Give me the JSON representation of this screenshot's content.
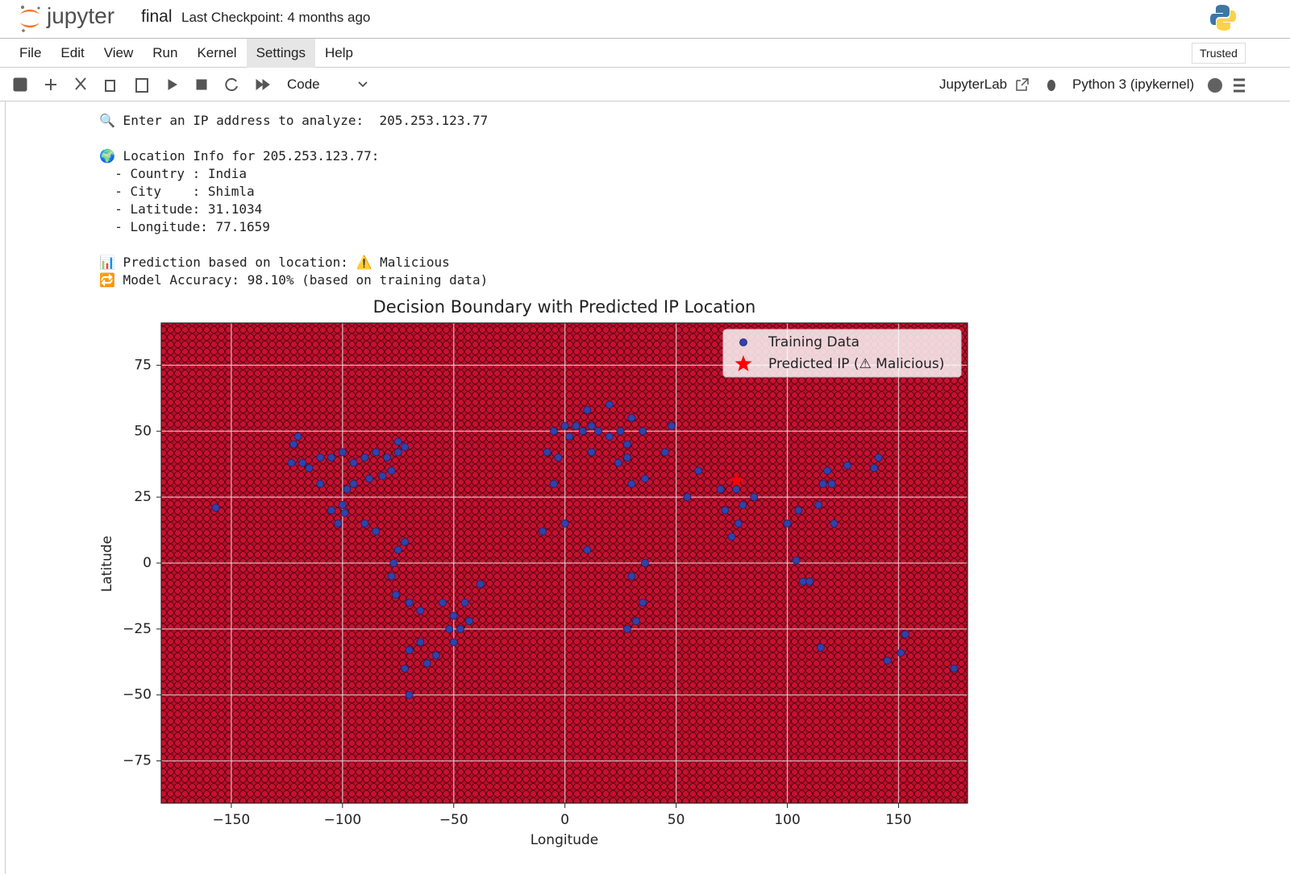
{
  "header": {
    "logo": "jupyter",
    "notebook": "final",
    "checkpoint": "Last Checkpoint: 4 months ago"
  },
  "menu": {
    "items": [
      "File",
      "Edit",
      "View",
      "Run",
      "Kernel",
      "Settings",
      "Help"
    ],
    "trusted": "Trusted"
  },
  "toolbar": {
    "cell_type": "Code",
    "jupyterlab": "JupyterLab",
    "kernel": "Python 3 (ipykernel)"
  },
  "output": {
    "groups": [
      [
        "🔍 Enter an IP address to analyze:  205.253.123.77"
      ],
      [
        "🌍 Location Info for 205.253.123.77:",
        "  - Country : India",
        "  - City    : Shimla",
        "  - Latitude: 31.1034",
        "  - Longitude: 77.1659"
      ],
      [
        "📊 Prediction based on location: ⚠️ Malicious",
        "🔁 Model Accuracy: 98.10% (based on training data)"
      ]
    ]
  },
  "chart_data": {
    "type": "scatter",
    "title": "Decision Boundary with Predicted IP Location",
    "x_label": "Longitude",
    "y_label": "Latitude",
    "xlim": [
      -181.5,
      181
    ],
    "ylim": [
      -91,
      91
    ],
    "xticks": [
      {
        "value": -150,
        "label": "−150"
      },
      {
        "value": -100,
        "label": "−100"
      },
      {
        "value": -50,
        "label": "−50"
      },
      0,
      50,
      100,
      150
    ],
    "yticks": [
      {
        "value": -75,
        "label": "−75"
      },
      {
        "value": -50,
        "label": "−50"
      },
      {
        "value": -25,
        "label": "−25"
      },
      0,
      25,
      50,
      75
    ],
    "grid": true,
    "legend": "upper right",
    "background_color": "#b5112c",
    "series": [
      {
        "name": "Training Data",
        "color": "#2f43a8",
        "marker": "circle",
        "x": [
          -120,
          -118,
          -115,
          -110,
          -105,
          -100,
          -95,
          -90,
          -85,
          -80,
          -75,
          -72,
          -78,
          -82,
          -88,
          -95,
          -98,
          -100,
          -105,
          -99,
          -90,
          -85,
          -110,
          -122,
          -123,
          -75,
          -102,
          -75,
          -72,
          -77,
          -78,
          -76,
          -70,
          -65,
          -55,
          -50,
          -47,
          -43,
          -38,
          -50,
          -58,
          -62,
          -70,
          -72,
          -70,
          -45,
          -52,
          -65,
          -5,
          0,
          2,
          5,
          8,
          12,
          15,
          20,
          25,
          28,
          30,
          35,
          -3,
          -8,
          12,
          24,
          28,
          20,
          10,
          45,
          48,
          36,
          -5,
          0,
          -10,
          10,
          30,
          35,
          28,
          32,
          36,
          30,
          55,
          60,
          70,
          72,
          78,
          80,
          85,
          77,
          75,
          100,
          104,
          105,
          114,
          116,
          120,
          118,
          127,
          139,
          141,
          107,
          110,
          121,
          145,
          151,
          153,
          115,
          175,
          -157
        ],
        "y": [
          48,
          38,
          36,
          40,
          40,
          42,
          38,
          40,
          42,
          40,
          42,
          44,
          35,
          33,
          32,
          30,
          28,
          22,
          20,
          19,
          15,
          12,
          30,
          45,
          38,
          46,
          15,
          5,
          8,
          0,
          -5,
          -12,
          -15,
          -18,
          -15,
          -20,
          -25,
          -22,
          -8,
          -30,
          -35,
          -38,
          -33,
          -40,
          -50,
          -15,
          -25,
          -30,
          50,
          52,
          48,
          52,
          50,
          52,
          50,
          48,
          50,
          45,
          55,
          50,
          40,
          42,
          42,
          38,
          40,
          60,
          58,
          42,
          52,
          32,
          30,
          15,
          12,
          5,
          -5,
          -15,
          -25,
          -22,
          0,
          30,
          25,
          35,
          28,
          20,
          15,
          22,
          25,
          28,
          10,
          15,
          1,
          20,
          22,
          30,
          30,
          35,
          37,
          36,
          40,
          -7,
          -7,
          15,
          -37,
          -34,
          -27,
          -32,
          -40,
          21
        ]
      },
      {
        "name": "Predicted IP (⚠ Malicious)",
        "color": "#ff0000",
        "marker": "star",
        "x": [
          77.1659
        ],
        "y": [
          31.1034
        ]
      }
    ]
  }
}
